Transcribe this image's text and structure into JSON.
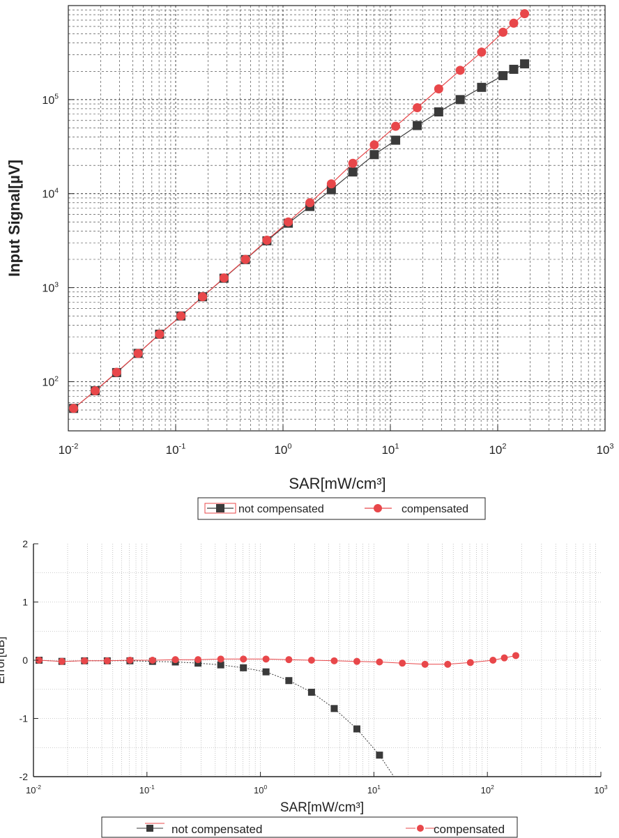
{
  "chart_data": [
    {
      "type": "scatter",
      "title": "",
      "xlabel": "SAR[mW/cm³]",
      "ylabel": "Input Signal[µV]",
      "xscale": "log",
      "yscale": "log",
      "xlim": [
        0.01,
        1000
      ],
      "ylim": [
        30,
        1000000
      ],
      "grid": true,
      "legend": "below",
      "x_ticks": [
        "10-2",
        "10-1",
        "100",
        "101",
        "102",
        "103"
      ],
      "y_ticks": [
        "102",
        "103",
        "104",
        "105"
      ],
      "series": [
        {
          "name": "not compensated",
          "marker": "square",
          "color": "#3a3a3a",
          "x": [
            0.0112,
            0.0178,
            0.0282,
            0.0447,
            0.0708,
            0.112,
            0.178,
            0.282,
            0.447,
            0.708,
            1.12,
            1.78,
            2.82,
            4.47,
            7.08,
            11.2,
            17.8,
            28.2,
            44.7,
            70.8,
            112,
            141,
            178
          ],
          "y": [
            52,
            80,
            125,
            200,
            320,
            500,
            800,
            1260,
            1990,
            3150,
            4850,
            7300,
            11000,
            17000,
            26000,
            37000,
            53000,
            74000,
            100000,
            135000,
            180000,
            210000,
            240000
          ]
        },
        {
          "name": "compensated",
          "marker": "circle",
          "color": "#e8474a",
          "x": [
            0.0112,
            0.0178,
            0.0282,
            0.0447,
            0.0708,
            0.112,
            0.178,
            0.282,
            0.447,
            0.708,
            1.12,
            1.78,
            2.82,
            4.47,
            7.08,
            11.2,
            17.8,
            28.2,
            44.7,
            70.8,
            112,
            141,
            178
          ],
          "y": [
            52,
            80,
            126,
            200,
            320,
            500,
            800,
            1270,
            2000,
            3200,
            5000,
            8000,
            12700,
            21000,
            33000,
            52000,
            82000,
            130000,
            205000,
            320000,
            520000,
            650000,
            820000
          ]
        }
      ]
    },
    {
      "type": "line",
      "title": "",
      "xlabel": "SAR[mW/cm³]",
      "ylabel": "Error[dB]",
      "xscale": "log",
      "xlim": [
        0.01,
        1000
      ],
      "ylim": [
        -2,
        2
      ],
      "grid": true,
      "legend": "below",
      "x_ticks": [
        "10-2",
        "10-1",
        "100",
        "101",
        "102",
        "103"
      ],
      "y_ticks": [
        "-2",
        "-1",
        "0",
        "1",
        "2"
      ],
      "series": [
        {
          "name": "not compensated",
          "marker": "square",
          "color": "#3a3a3a",
          "x": [
            0.0112,
            0.0178,
            0.0282,
            0.0447,
            0.0708,
            0.112,
            0.178,
            0.282,
            0.447,
            0.708,
            1.12,
            1.78,
            2.82,
            4.47,
            7.08,
            11.2,
            15.0
          ],
          "y": [
            0.0,
            -0.02,
            -0.01,
            -0.01,
            -0.01,
            -0.02,
            -0.03,
            -0.05,
            -0.08,
            -0.13,
            -0.2,
            -0.35,
            -0.55,
            -0.83,
            -1.18,
            -1.63,
            -2.0
          ]
        },
        {
          "name": "compensated",
          "marker": "circle",
          "color": "#e8474a",
          "x": [
            0.0112,
            0.0178,
            0.0282,
            0.0447,
            0.0708,
            0.112,
            0.178,
            0.282,
            0.447,
            0.708,
            1.12,
            1.78,
            2.82,
            4.47,
            7.08,
            11.2,
            17.8,
            28.2,
            44.7,
            70.8,
            112,
            141,
            178
          ],
          "y": [
            0.0,
            -0.02,
            -0.01,
            -0.01,
            0.0,
            0.0,
            0.01,
            0.01,
            0.02,
            0.02,
            0.02,
            0.01,
            0.0,
            -0.01,
            -0.02,
            -0.03,
            -0.05,
            -0.07,
            -0.07,
            -0.04,
            0.0,
            0.04,
            0.08
          ]
        }
      ]
    }
  ]
}
